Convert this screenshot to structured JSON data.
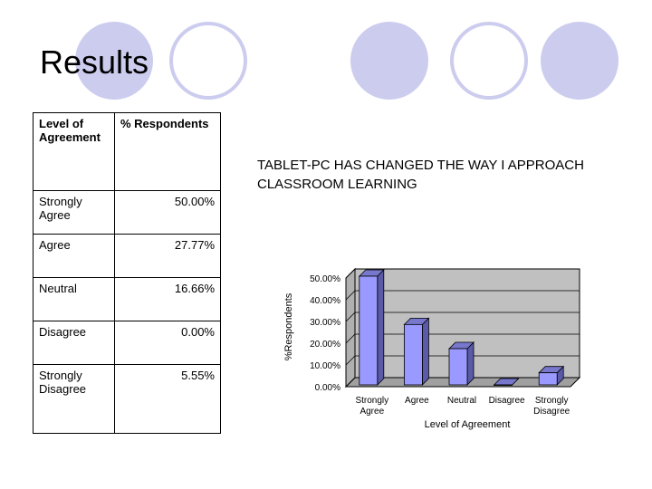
{
  "slide": {
    "title": "Results"
  },
  "table": {
    "headers": [
      "Level of Agreement",
      "% Respondents"
    ],
    "rows": [
      {
        "level": "Strongly Agree",
        "percent": "50.00%"
      },
      {
        "level": "Agree",
        "percent": "27.77%"
      },
      {
        "level": "Neutral",
        "percent": "16.66%"
      },
      {
        "level": "Disagree",
        "percent": "0.00%"
      },
      {
        "level": "Strongly Disagree",
        "percent": "5.55%"
      }
    ]
  },
  "colors": {
    "bar": "#9999ff",
    "plot_bg": "#c0c0c0",
    "decor_circle": "#ccccee"
  },
  "chart_data": {
    "type": "bar",
    "title": "TABLET-PC HAS CHANGED THE WAY I APPROACH CLASSROOM LEARNING",
    "categories": [
      "Strongly Agree",
      "Agree",
      "Neutral",
      "Disagree",
      "Strongly Disagree"
    ],
    "values": [
      50.0,
      27.77,
      16.66,
      0.0,
      5.55
    ],
    "xlabel": "Level of Agreement",
    "ylabel": "%Respondents",
    "ylim": [
      0,
      50
    ],
    "yticks": [
      "0.00%",
      "10.00%",
      "20.00%",
      "30.00%",
      "40.00%",
      "50.00%"
    ],
    "grid": true,
    "legend": "none"
  }
}
